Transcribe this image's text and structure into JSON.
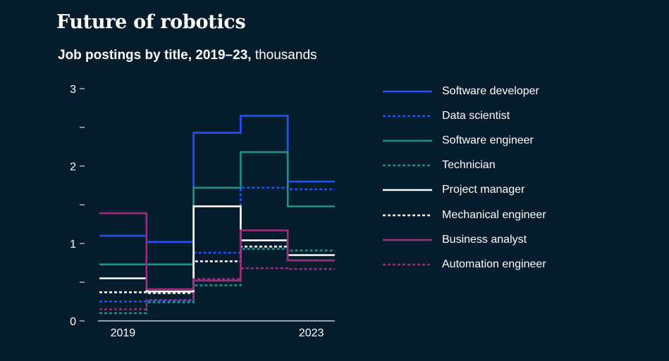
{
  "title": "Future of robotics",
  "subtitle": {
    "main": "Job postings by title, 2019–23,",
    "unit": "thousands"
  },
  "chart_data": {
    "type": "line",
    "step": true,
    "x": [
      2019,
      2020,
      2021,
      2022,
      2023
    ],
    "xlabels": [
      "2019",
      "",
      "",
      "",
      "2023"
    ],
    "yticks": [
      0,
      0.5,
      1,
      1.5,
      2,
      2.5,
      3
    ],
    "yticklabels": [
      "0",
      "",
      "1",
      "",
      "2",
      "",
      "3"
    ],
    "ylim": [
      0,
      3
    ],
    "series": [
      {
        "name": "Software developer",
        "color": "#2251ff",
        "dash": false,
        "values": [
          1.1,
          1.02,
          2.43,
          2.65,
          1.8
        ]
      },
      {
        "name": "Data scientist",
        "color": "#2251ff",
        "dash": true,
        "values": [
          0.25,
          0.26,
          0.88,
          1.72,
          1.7
        ]
      },
      {
        "name": "Software engineer",
        "color": "#1f9187",
        "dash": false,
        "values": [
          0.73,
          0.73,
          1.72,
          2.18,
          1.48
        ]
      },
      {
        "name": "Technician",
        "color": "#1f9187",
        "dash": true,
        "values": [
          0.1,
          0.24,
          0.46,
          0.93,
          0.91
        ]
      },
      {
        "name": "Project manager",
        "color": "#ffffff",
        "dash": false,
        "values": [
          0.55,
          0.38,
          1.48,
          1.04,
          0.85
        ]
      },
      {
        "name": "Mechanical engineer",
        "color": "#ffffff",
        "dash": true,
        "values": [
          0.37,
          0.36,
          0.77,
          0.96,
          0.78
        ]
      },
      {
        "name": "Business analyst",
        "color": "#9b2d7f",
        "dash": false,
        "values": [
          1.39,
          0.41,
          0.52,
          1.17,
          0.78
        ]
      },
      {
        "name": "Automation engineer",
        "color": "#9b2d7f",
        "dash": true,
        "values": [
          0.15,
          0.27,
          0.54,
          0.68,
          0.67
        ]
      }
    ]
  }
}
